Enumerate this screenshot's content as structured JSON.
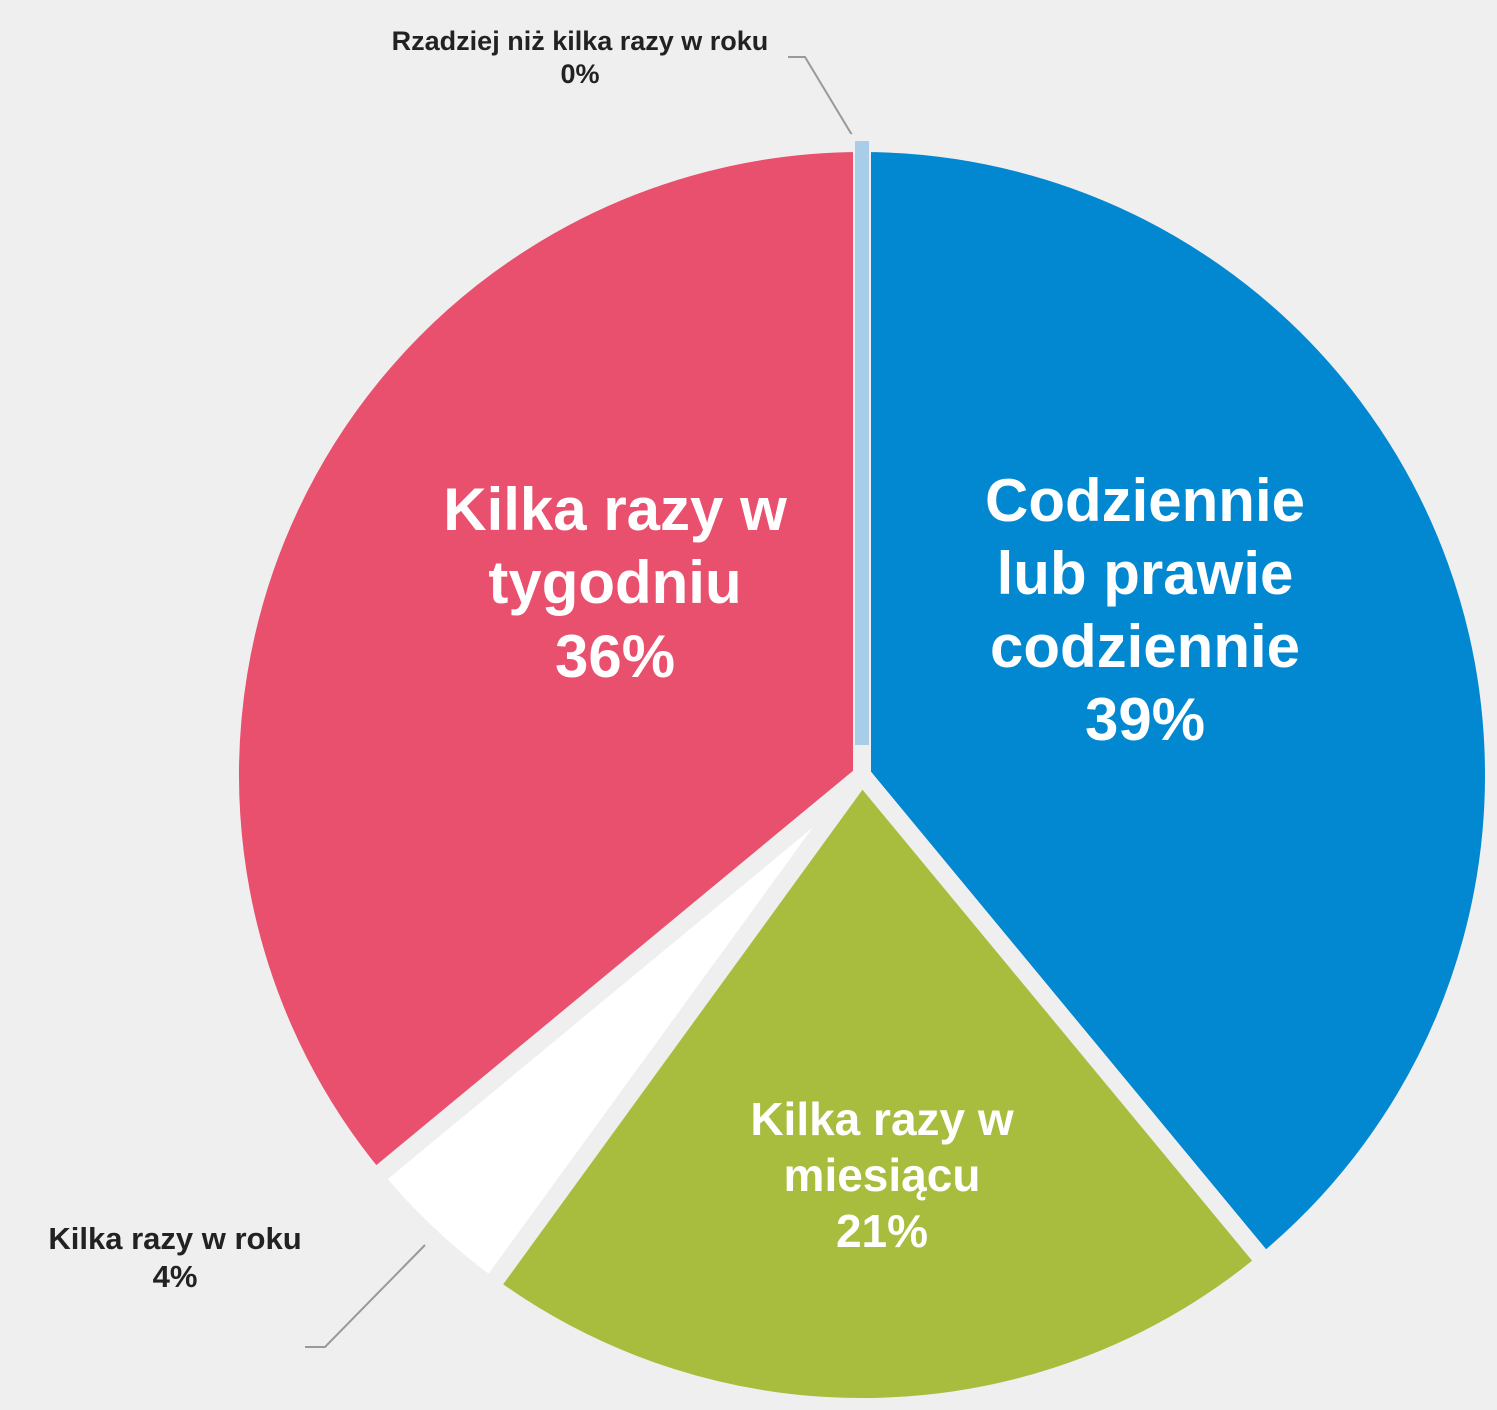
{
  "chart_data": {
    "type": "pie",
    "categories": [
      "Codziennie lub prawie codziennie",
      "Kilka razy w miesiącu",
      "Kilka razy w roku",
      "Kilka razy w tygodniu",
      "Rzadziej niż kilka razy w roku"
    ],
    "values": [
      39,
      21,
      4,
      36,
      0
    ],
    "value_labels": [
      "39%",
      "21%",
      "4%",
      "36%",
      "0%"
    ],
    "colors": [
      "#0288d1",
      "#a8bc3e",
      "#ffffff",
      "#e8506e",
      "#a7cde9"
    ]
  }
}
